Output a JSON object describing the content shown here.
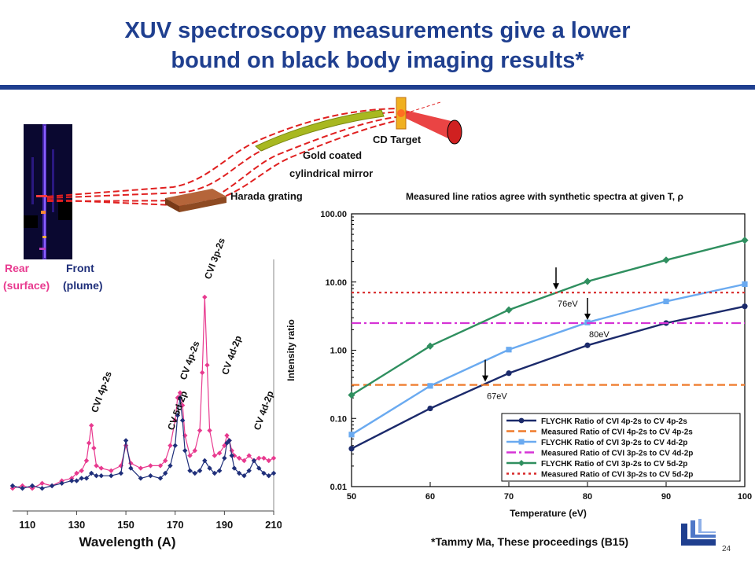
{
  "slide": {
    "title_line1": "XUV spectroscopy measurements give a lower",
    "title_line2": "bound on black body imaging results*",
    "footnote": "*Tammy Ma, These proceedings (B15)",
    "page_number": "24",
    "title_color": "#1f3f8f"
  },
  "diagram": {
    "target_label": "CD Target",
    "mirror_label_1": "Gold coated",
    "mirror_label_2": "cylindrical mirror",
    "grating_label": "Harada grating",
    "rear_label_1": "Rear",
    "rear_label_2": "(surface)",
    "front_label_1": "Front",
    "front_label_2": "(plume)",
    "rear_color": "#e83a8f",
    "front_color": "#1f2f7a"
  },
  "chart_data": [
    {
      "type": "line",
      "xlabel": "Wavelength (A)",
      "xticks": [
        110,
        130,
        150,
        170,
        190,
        210
      ],
      "xlim": [
        104,
        210
      ],
      "ylim": [
        0,
        1
      ],
      "annotations": [
        "CVI 4p-2s",
        "CV 5d-2p",
        "CV 4p-2s",
        "CVI 3p-2s",
        "CV 4d-2p",
        "CV 4d-2p"
      ],
      "series": [
        {
          "name": "Rear (surface)",
          "color": "#e83a8f",
          "x": [
            104,
            108,
            112,
            116,
            120,
            124,
            128,
            130,
            132,
            134,
            135,
            136,
            137,
            138,
            140,
            144,
            148,
            150,
            152,
            156,
            160,
            164,
            166,
            168,
            170,
            171,
            172,
            173,
            174,
            176,
            178,
            180,
            181,
            182,
            183,
            184,
            186,
            188,
            190,
            191,
            192,
            193,
            194,
            196,
            198,
            200,
            202,
            204,
            206,
            208,
            210
          ],
          "y": [
            0.09,
            0.1,
            0.09,
            0.11,
            0.1,
            0.12,
            0.13,
            0.15,
            0.16,
            0.2,
            0.27,
            0.34,
            0.25,
            0.18,
            0.17,
            0.16,
            0.18,
            0.26,
            0.19,
            0.17,
            0.18,
            0.18,
            0.2,
            0.26,
            0.36,
            0.45,
            0.47,
            0.42,
            0.3,
            0.22,
            0.24,
            0.32,
            0.55,
            0.85,
            0.58,
            0.32,
            0.22,
            0.23,
            0.26,
            0.3,
            0.28,
            0.24,
            0.22,
            0.21,
            0.2,
            0.22,
            0.2,
            0.21,
            0.21,
            0.2,
            0.21
          ]
        },
        {
          "name": "Front (plume)",
          "color": "#1f2f7a",
          "x": [
            104,
            108,
            112,
            116,
            120,
            124,
            128,
            130,
            132,
            134,
            136,
            138,
            140,
            144,
            148,
            150,
            152,
            156,
            160,
            164,
            166,
            168,
            170,
            171,
            172,
            173,
            174,
            176,
            178,
            180,
            182,
            184,
            186,
            188,
            190,
            191,
            192,
            193,
            194,
            196,
            198,
            200,
            202,
            204,
            206,
            208,
            210
          ],
          "y": [
            0.1,
            0.09,
            0.1,
            0.09,
            0.1,
            0.11,
            0.12,
            0.12,
            0.13,
            0.13,
            0.15,
            0.14,
            0.14,
            0.14,
            0.15,
            0.28,
            0.17,
            0.13,
            0.14,
            0.13,
            0.15,
            0.18,
            0.26,
            0.38,
            0.45,
            0.36,
            0.24,
            0.16,
            0.15,
            0.16,
            0.2,
            0.17,
            0.15,
            0.16,
            0.21,
            0.27,
            0.28,
            0.22,
            0.17,
            0.15,
            0.14,
            0.16,
            0.2,
            0.17,
            0.15,
            0.14,
            0.15
          ]
        }
      ]
    },
    {
      "type": "line",
      "title": "Measured line ratios agree with synthetic spectra at given T, ρ",
      "xlabel": "Temperature (eV)",
      "ylabel": "Intensity ratio",
      "x": [
        50,
        60,
        70,
        80,
        90,
        100
      ],
      "xlim": [
        50,
        100
      ],
      "ylim": [
        0.01,
        100
      ],
      "yscale": "log",
      "yticks": [
        0.01,
        0.1,
        1,
        10,
        100
      ],
      "ytick_labels": [
        "0.01",
        "0.10",
        "1.00",
        "10.00",
        "100.00"
      ],
      "series": [
        {
          "name": "FLYCHK Ratio of CVI 4p-2s to CV 4p-2s",
          "color": "#1b2a6b",
          "style": "solid",
          "marker": "circle",
          "values": [
            0.036,
            0.14,
            0.46,
            1.18,
            2.5,
            4.4
          ]
        },
        {
          "name": "Measured Ratio of CVI 4p-2s to CV 4p-2s",
          "color": "#ef7a2a",
          "style": "dashed",
          "constant": 0.31
        },
        {
          "name": "FLYCHK Ratio of CVI 3p-2s to CV 4d-2p",
          "color": "#6aaaf0",
          "style": "solid",
          "marker": "square",
          "values": [
            0.058,
            0.3,
            1.02,
            2.55,
            5.2,
            9.3
          ]
        },
        {
          "name": "Measured Ratio of CVI 3p-2s to CV 4d-2p",
          "color": "#d633d6",
          "style": "dashdot",
          "constant": 2.5
        },
        {
          "name": "FLYCHK Ratio of CVI 3p-2s to CV 5d-2p",
          "color": "#2f8f5f",
          "style": "solid",
          "marker": "diamond",
          "values": [
            0.22,
            1.15,
            3.9,
            10.2,
            21,
            41
          ]
        },
        {
          "name": "Measured Ratio of CVI 3p-2s to CV 5d-2p",
          "color": "#d82a2a",
          "style": "dotted",
          "constant": 7.0
        }
      ],
      "annotations": [
        {
          "text": "76eV",
          "x": 76,
          "y": 7.0
        },
        {
          "text": "80eV",
          "x": 80,
          "y": 2.5
        },
        {
          "text": "67eV",
          "x": 67,
          "y": 0.31
        }
      ],
      "legend": "bottom-right",
      "grid": false
    }
  ]
}
